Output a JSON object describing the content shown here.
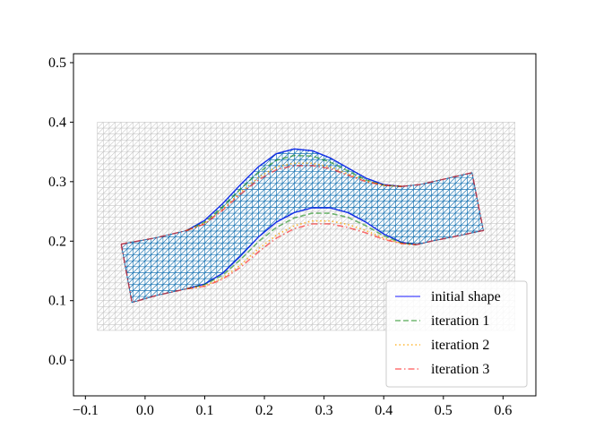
{
  "chart_data": {
    "type": "line",
    "title": "",
    "xlabel": "",
    "ylabel": "",
    "xlim": [
      -0.12,
      0.655
    ],
    "ylim": [
      -0.06,
      0.515
    ],
    "x_ticks": [
      -0.1,
      0.0,
      0.1,
      0.2,
      0.3,
      0.4,
      0.5,
      0.6
    ],
    "x_tick_labels": [
      "−0.1",
      "0.0",
      "0.1",
      "0.2",
      "0.3",
      "0.4",
      "0.5",
      "0.6"
    ],
    "y_ticks": [
      0.0,
      0.1,
      0.2,
      0.3,
      0.4,
      0.5
    ],
    "y_tick_labels": [
      "0.0",
      "0.1",
      "0.2",
      "0.3",
      "0.4",
      "0.5"
    ],
    "grid": false,
    "legend_position": "lower-right",
    "background_mesh": {
      "x_range": [
        -0.08,
        0.62
      ],
      "y_range": [
        0.05,
        0.4
      ],
      "nx": 70,
      "ny": 35,
      "color": "#c8c8c8"
    },
    "shape": {
      "outer": [
        [
          -0.04,
          0.195
        ],
        [
          0.02,
          0.206
        ],
        [
          0.07,
          0.218
        ],
        [
          0.1,
          0.235
        ],
        [
          0.13,
          0.263
        ],
        [
          0.16,
          0.295
        ],
        [
          0.19,
          0.325
        ],
        [
          0.22,
          0.347
        ],
        [
          0.25,
          0.355
        ],
        [
          0.28,
          0.352
        ],
        [
          0.31,
          0.34
        ],
        [
          0.34,
          0.323
        ],
        [
          0.37,
          0.306
        ],
        [
          0.4,
          0.295
        ],
        [
          0.43,
          0.292
        ],
        [
          0.46,
          0.295
        ],
        [
          0.5,
          0.304
        ],
        [
          0.548,
          0.315
        ],
        [
          0.567,
          0.218
        ],
        [
          0.52,
          0.208
        ],
        [
          0.48,
          0.2
        ],
        [
          0.455,
          0.194
        ],
        [
          0.43,
          0.198
        ],
        [
          0.4,
          0.212
        ],
        [
          0.37,
          0.232
        ],
        [
          0.34,
          0.248
        ],
        [
          0.31,
          0.256
        ],
        [
          0.28,
          0.256
        ],
        [
          0.25,
          0.248
        ],
        [
          0.22,
          0.232
        ],
        [
          0.19,
          0.207
        ],
        [
          0.16,
          0.175
        ],
        [
          0.13,
          0.146
        ],
        [
          0.1,
          0.128
        ],
        [
          0.07,
          0.12
        ],
        [
          0.02,
          0.109
        ],
        [
          -0.022,
          0.097
        ],
        [
          -0.04,
          0.195
        ]
      ],
      "mesh_step": 0.01,
      "color": "#1f77b4"
    },
    "series": [
      {
        "name": "initial shape",
        "color": "#0000ff",
        "dash": "solid",
        "opacity": 0.6,
        "segments": [
          [
            [
              0.07,
              0.218
            ],
            [
              0.1,
              0.235
            ],
            [
              0.13,
              0.263
            ],
            [
              0.16,
              0.295
            ],
            [
              0.19,
              0.325
            ],
            [
              0.22,
              0.347
            ],
            [
              0.25,
              0.355
            ],
            [
              0.28,
              0.352
            ],
            [
              0.31,
              0.34
            ],
            [
              0.34,
              0.323
            ],
            [
              0.37,
              0.306
            ],
            [
              0.4,
              0.295
            ],
            [
              0.43,
              0.292
            ]
          ],
          [
            [
              0.07,
              0.12
            ],
            [
              0.1,
              0.128
            ],
            [
              0.13,
              0.146
            ],
            [
              0.16,
              0.175
            ],
            [
              0.19,
              0.207
            ],
            [
              0.22,
              0.232
            ],
            [
              0.25,
              0.248
            ],
            [
              0.28,
              0.256
            ],
            [
              0.31,
              0.256
            ],
            [
              0.34,
              0.248
            ],
            [
              0.37,
              0.232
            ],
            [
              0.4,
              0.212
            ],
            [
              0.43,
              0.198
            ],
            [
              0.455,
              0.194
            ]
          ]
        ]
      },
      {
        "name": "iteration 1",
        "color": "#008000",
        "dash": "dashed",
        "opacity": 0.55,
        "segments": [
          [
            [
              0.07,
              0.218
            ],
            [
              0.1,
              0.232
            ],
            [
              0.13,
              0.258
            ],
            [
              0.16,
              0.288
            ],
            [
              0.19,
              0.315
            ],
            [
              0.22,
              0.336
            ],
            [
              0.25,
              0.344
            ],
            [
              0.28,
              0.343
            ],
            [
              0.31,
              0.333
            ],
            [
              0.34,
              0.318
            ],
            [
              0.37,
              0.303
            ],
            [
              0.4,
              0.294
            ],
            [
              0.43,
              0.292
            ]
          ],
          [
            [
              0.07,
              0.12
            ],
            [
              0.1,
              0.127
            ],
            [
              0.13,
              0.143
            ],
            [
              0.16,
              0.169
            ],
            [
              0.19,
              0.199
            ],
            [
              0.22,
              0.223
            ],
            [
              0.25,
              0.239
            ],
            [
              0.28,
              0.247
            ],
            [
              0.31,
              0.247
            ],
            [
              0.34,
              0.24
            ],
            [
              0.37,
              0.226
            ],
            [
              0.4,
              0.209
            ],
            [
              0.43,
              0.197
            ],
            [
              0.455,
              0.194
            ]
          ]
        ]
      },
      {
        "name": "iteration 2",
        "color": "#ffa500",
        "dash": "dotted",
        "opacity": 0.8,
        "segments": [
          [
            [
              0.07,
              0.218
            ],
            [
              0.1,
              0.23
            ],
            [
              0.13,
              0.254
            ],
            [
              0.16,
              0.282
            ],
            [
              0.19,
              0.307
            ],
            [
              0.22,
              0.325
            ],
            [
              0.25,
              0.331
            ],
            [
              0.28,
              0.331
            ],
            [
              0.31,
              0.325
            ],
            [
              0.34,
              0.313
            ],
            [
              0.37,
              0.301
            ],
            [
              0.4,
              0.294
            ],
            [
              0.43,
              0.292
            ]
          ],
          [
            [
              0.07,
              0.12
            ],
            [
              0.1,
              0.125
            ],
            [
              0.13,
              0.138
            ],
            [
              0.16,
              0.16
            ],
            [
              0.19,
              0.187
            ],
            [
              0.22,
              0.21
            ],
            [
              0.25,
              0.226
            ],
            [
              0.28,
              0.234
            ],
            [
              0.31,
              0.234
            ],
            [
              0.34,
              0.228
            ],
            [
              0.37,
              0.218
            ],
            [
              0.4,
              0.205
            ],
            [
              0.43,
              0.196
            ],
            [
              0.455,
              0.194
            ]
          ]
        ]
      },
      {
        "name": "iteration 3",
        "color": "#ff0000",
        "dash": "dashdot",
        "opacity": 0.55,
        "segments": [
          [
            [
              0.07,
              0.218
            ],
            [
              0.1,
              0.229
            ],
            [
              0.13,
              0.252
            ],
            [
              0.16,
              0.279
            ],
            [
              0.19,
              0.303
            ],
            [
              0.22,
              0.32
            ],
            [
              0.25,
              0.327
            ],
            [
              0.28,
              0.327
            ],
            [
              0.31,
              0.322
            ],
            [
              0.34,
              0.311
            ],
            [
              0.37,
              0.3
            ],
            [
              0.4,
              0.294
            ],
            [
              0.43,
              0.292
            ]
          ],
          [
            [
              0.07,
              0.12
            ],
            [
              0.1,
              0.124
            ],
            [
              0.13,
              0.136
            ],
            [
              0.16,
              0.156
            ],
            [
              0.19,
              0.182
            ],
            [
              0.22,
              0.205
            ],
            [
              0.25,
              0.221
            ],
            [
              0.28,
              0.229
            ],
            [
              0.31,
              0.229
            ],
            [
              0.34,
              0.223
            ],
            [
              0.37,
              0.214
            ],
            [
              0.4,
              0.203
            ],
            [
              0.43,
              0.196
            ],
            [
              0.455,
              0.194
            ]
          ],
          [
            [
              -0.04,
              0.195
            ],
            [
              -0.022,
              0.097
            ],
            [
              0.02,
              0.109
            ],
            [
              0.07,
              0.12
            ]
          ],
          [
            [
              -0.04,
              0.195
            ],
            [
              0.02,
              0.206
            ],
            [
              0.07,
              0.218
            ]
          ],
          [
            [
              0.43,
              0.292
            ],
            [
              0.46,
              0.295
            ],
            [
              0.5,
              0.304
            ],
            [
              0.548,
              0.315
            ],
            [
              0.567,
              0.218
            ],
            [
              0.52,
              0.208
            ],
            [
              0.48,
              0.2
            ],
            [
              0.455,
              0.194
            ]
          ]
        ]
      }
    ]
  }
}
